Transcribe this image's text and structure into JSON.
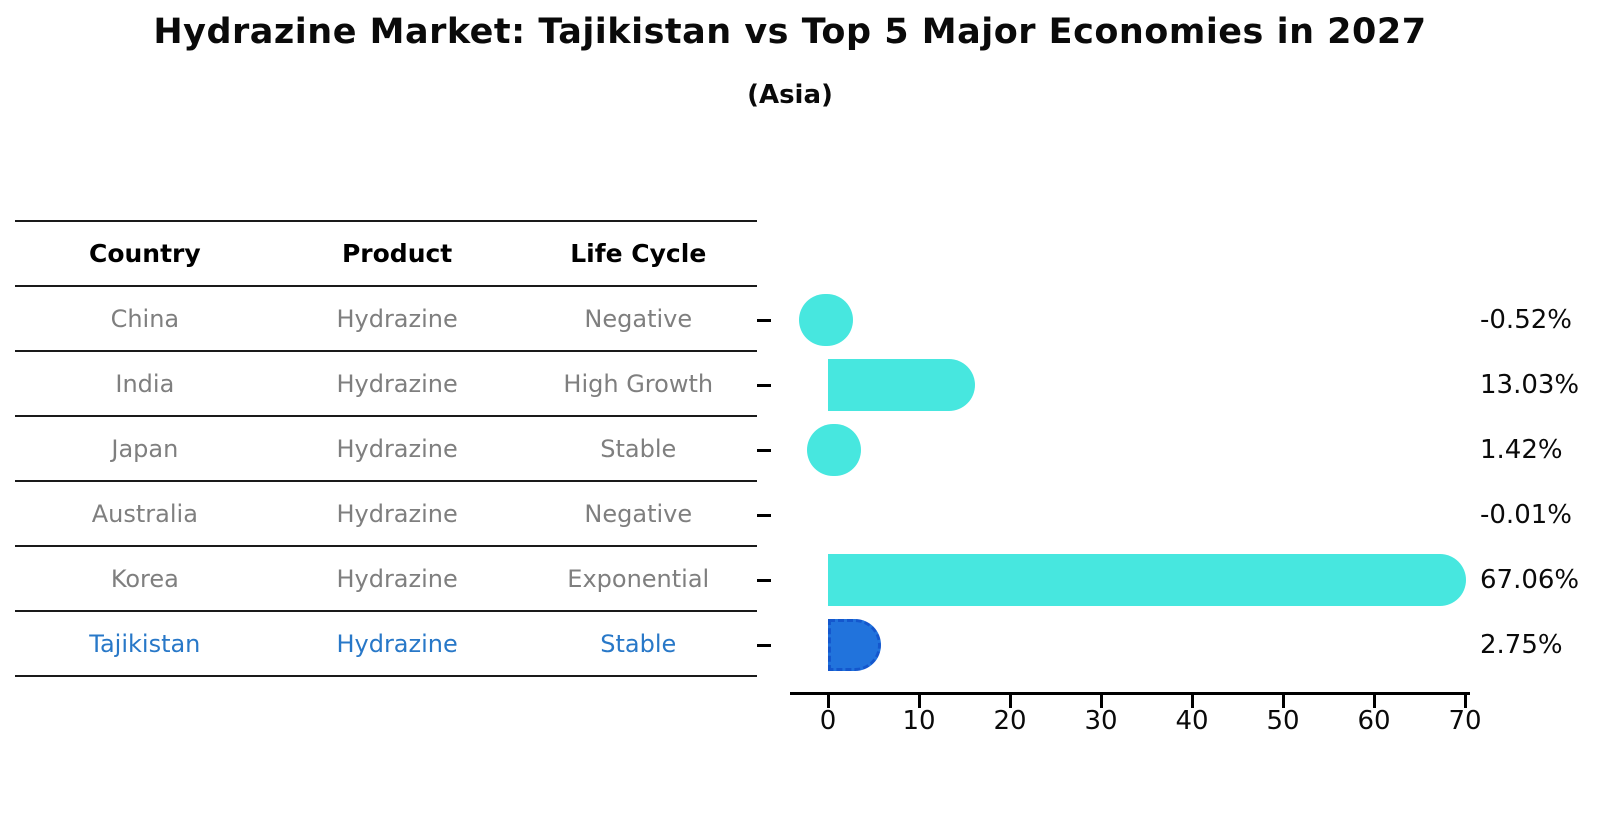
{
  "title": "Hydrazine Market: Tajikistan vs Top 5 Major Economies in 2027",
  "subtitle": "(Asia)",
  "table": {
    "headers": [
      "Country",
      "Product",
      "Life Cycle"
    ],
    "rows": [
      {
        "country": "China",
        "product": "Hydrazine",
        "life_cycle": "Negative",
        "highlight": false
      },
      {
        "country": "India",
        "product": "Hydrazine",
        "life_cycle": "High Growth",
        "highlight": false
      },
      {
        "country": "Japan",
        "product": "Hydrazine",
        "life_cycle": "Stable",
        "highlight": false
      },
      {
        "country": "Australia",
        "product": "Hydrazine",
        "life_cycle": "Negative",
        "highlight": false
      },
      {
        "country": "Korea",
        "product": "Hydrazine",
        "life_cycle": "Exponential",
        "highlight": false
      },
      {
        "country": "Tajikistan",
        "product": "Hydrazine",
        "life_cycle": "Stable",
        "highlight": true
      }
    ]
  },
  "chart_data": {
    "type": "bar",
    "orientation": "horizontal",
    "categories": [
      "China",
      "India",
      "Japan",
      "Australia",
      "Korea",
      "Tajikistan"
    ],
    "values": [
      -0.52,
      13.03,
      1.42,
      -0.01,
      67.06,
      2.75
    ],
    "value_labels": [
      "-0.52%",
      "13.03%",
      "1.42%",
      "-0.01%",
      "67.06%",
      "2.75%"
    ],
    "x_ticks": [
      "0",
      "10",
      "20",
      "30",
      "40",
      "50",
      "60",
      "70"
    ],
    "xlim": [
      0,
      70
    ],
    "grid": false,
    "legend": false,
    "bar_color": "#47E7DF",
    "highlight_bar_color": "#2173DC",
    "highlight_index": 5
  },
  "colors": {
    "text": "#0a0a0a",
    "muted_text": "#7f7f7f",
    "highlight_text": "#2878C8",
    "bar": "#47E7DF",
    "highlight_bar": "#2173DC",
    "axis": "#000000"
  }
}
